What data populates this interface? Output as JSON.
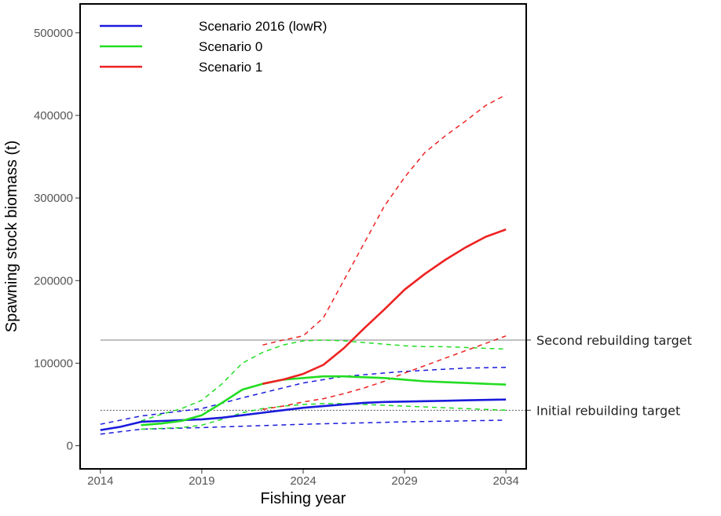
{
  "chart_data": {
    "type": "line",
    "title": "",
    "xlabel": "Fishing year",
    "ylabel": "Spawning stock biomass (t)",
    "xlim": [
      2013,
      2035
    ],
    "ylim": [
      -28000,
      535000
    ],
    "x_ticks": [
      2014,
      2019,
      2024,
      2029,
      2034
    ],
    "y_ticks": [
      0,
      100000,
      200000,
      300000,
      400000,
      500000
    ],
    "y_tick_labels": [
      "0",
      "100000",
      "200000",
      "300000",
      "400000",
      "500000"
    ],
    "grid": false,
    "legend_position": "top-left",
    "reference_lines": [
      {
        "label": "Second rebuilding target",
        "y": 128000,
        "style": "solid",
        "color": "#9a9a9a"
      },
      {
        "label": "Initial rebuilding target",
        "y": 43000,
        "style": "dotted",
        "color": "#555555"
      }
    ],
    "series": [
      {
        "name": "Scenario 2016 (lowR)",
        "color": "#1a1adc",
        "median": {
          "x": [
            2014,
            2015,
            2016,
            2017,
            2018,
            2019,
            2020,
            2021,
            2022,
            2023,
            2024,
            2025,
            2026,
            2027,
            2028,
            2029,
            2030,
            2031,
            2032,
            2033,
            2034
          ],
          "y": [
            19000,
            23000,
            29000,
            30000,
            31000,
            32000,
            34000,
            37000,
            40000,
            43000,
            46000,
            48000,
            50000,
            52000,
            53000,
            53500,
            54000,
            54500,
            55000,
            55500,
            56000
          ]
        },
        "upper": {
          "x": [
            2014,
            2016,
            2019,
            2021,
            2024,
            2026,
            2029,
            2032,
            2034
          ],
          "y": [
            26000,
            36000,
            45000,
            58000,
            76000,
            84000,
            90000,
            94000,
            95000
          ]
        },
        "lower": {
          "x": [
            2014,
            2016,
            2019,
            2024,
            2029,
            2034
          ],
          "y": [
            14000,
            20000,
            22000,
            26000,
            29000,
            31000
          ]
        }
      },
      {
        "name": "Scenario 0",
        "color": "#22dd22",
        "median": {
          "x": [
            2016,
            2017,
            2018,
            2019,
            2020,
            2021,
            2022,
            2023,
            2024,
            2025,
            2026,
            2027,
            2028,
            2029,
            2030,
            2031,
            2032,
            2033,
            2034
          ],
          "y": [
            25000,
            27000,
            30000,
            37000,
            52000,
            68000,
            75000,
            80000,
            82000,
            84000,
            84000,
            83000,
            82000,
            80000,
            78000,
            77000,
            76000,
            75000,
            74000
          ]
        },
        "upper": {
          "x": [
            2016,
            2017,
            2018,
            2019,
            2020,
            2021,
            2022,
            2023,
            2024,
            2025,
            2026,
            2027,
            2028,
            2029,
            2030,
            2031,
            2032,
            2033,
            2034
          ],
          "y": [
            30000,
            38000,
            45000,
            55000,
            75000,
            100000,
            113000,
            122000,
            127000,
            128000,
            127000,
            125000,
            123000,
            121000,
            120000,
            120000,
            119000,
            118000,
            117000
          ]
        },
        "lower": {
          "x": [
            2016,
            2018,
            2019,
            2020,
            2021,
            2022,
            2023,
            2024,
            2025,
            2026,
            2027,
            2028,
            2029,
            2030,
            2031,
            2032,
            2033,
            2034
          ],
          "y": [
            20000,
            22000,
            25000,
            32000,
            40000,
            45000,
            48000,
            50000,
            51000,
            51000,
            50000,
            49000,
            48000,
            47000,
            46000,
            45000,
            44000,
            43000
          ]
        }
      },
      {
        "name": "Scenario 1",
        "color": "#ee2222",
        "median": {
          "x": [
            2022,
            2023,
            2024,
            2025,
            2026,
            2027,
            2028,
            2029,
            2030,
            2031,
            2032,
            2033,
            2034
          ],
          "y": [
            75000,
            80000,
            87000,
            98000,
            118000,
            142000,
            165000,
            189000,
            208000,
            225000,
            240000,
            253000,
            262000
          ]
        },
        "upper": {
          "x": [
            2022,
            2023,
            2024,
            2025,
            2026,
            2027,
            2028,
            2029,
            2030,
            2031,
            2032,
            2033,
            2034
          ],
          "y": [
            122000,
            128000,
            133000,
            155000,
            200000,
            245000,
            290000,
            325000,
            355000,
            375000,
            393000,
            412000,
            425000
          ]
        },
        "lower": {
          "x": [
            2022,
            2023,
            2024,
            2025,
            2026,
            2027,
            2028,
            2029,
            2030,
            2031,
            2032,
            2033,
            2034
          ],
          "y": [
            44000,
            48000,
            53000,
            57000,
            63000,
            70000,
            78000,
            88000,
            97000,
            106000,
            115000,
            124000,
            133000
          ]
        }
      }
    ]
  }
}
